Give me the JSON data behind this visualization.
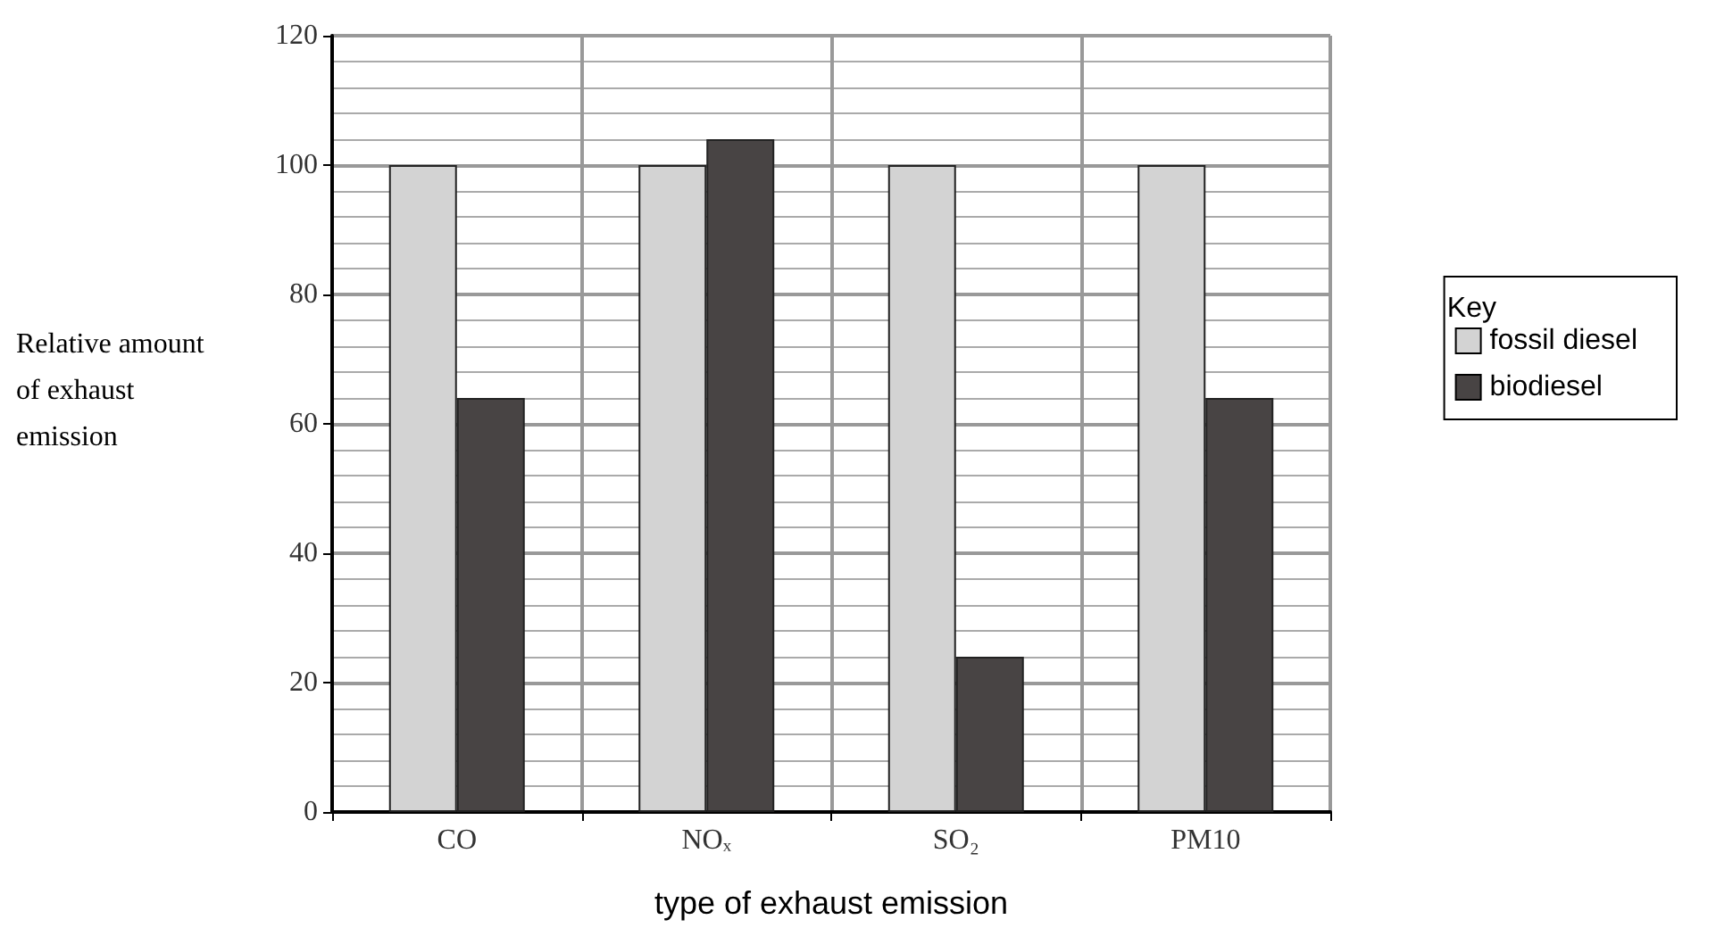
{
  "chart_data": {
    "type": "bar",
    "xlabel": "type of exhaust emission",
    "ylabel": "Relative amount of exhaust emission",
    "legend_title": "Key",
    "categories": [
      "CO",
      "NOₓ",
      "SO₂",
      "PM10"
    ],
    "series": [
      {
        "name": "fossil diesel",
        "color": "#d3d3d3",
        "values": [
          100,
          100,
          100,
          100
        ]
      },
      {
        "name": "biodiesel",
        "color": "#484444",
        "values": [
          64,
          104,
          24,
          64
        ]
      }
    ],
    "ylim": [
      0,
      120
    ],
    "yticks": [
      0,
      20,
      40,
      60,
      80,
      100,
      120
    ],
    "grid": true,
    "legend": "right"
  }
}
